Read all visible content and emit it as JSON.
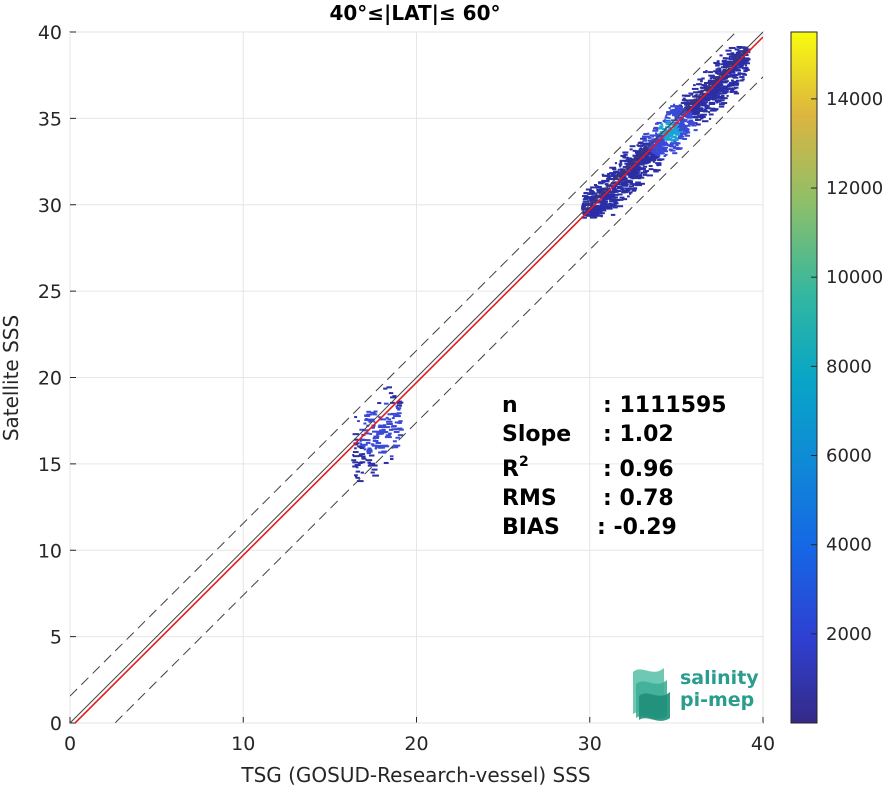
{
  "chart_data": {
    "type": "heatmap",
    "title": "40°≤|LAT|≤ 60°",
    "xlabel": "TSG (GOSUD-Research-vessel) SSS",
    "ylabel": "Satellite SSS",
    "xlim": [
      0,
      40
    ],
    "ylim": [
      0,
      40
    ],
    "xticks": [
      "0",
      "10",
      "20",
      "30",
      "40"
    ],
    "yticks": [
      "0",
      "5",
      "10",
      "15",
      "20",
      "25",
      "30",
      "35",
      "40"
    ],
    "grid": true,
    "lines": [
      {
        "kind": "identity",
        "color": "#404040",
        "intercept": 0,
        "slope": 1
      },
      {
        "kind": "upper-bound",
        "color": "#404040",
        "dash": true,
        "intercept": 1.56,
        "slope": 1
      },
      {
        "kind": "lower-bound",
        "color": "#404040",
        "dash": true,
        "intercept": -2.6,
        "slope": 1
      },
      {
        "kind": "fit",
        "color": "#e8191c",
        "intercept": -0.29,
        "slope": 1.0
      }
    ],
    "density_clusters": [
      {
        "x_range": [
          29.5,
          39
        ],
        "y_range": [
          29.3,
          39.2
        ],
        "center": [
          34.5,
          34.3
        ]
      },
      {
        "x_range": [
          16.2,
          19
        ],
        "y_range": [
          14,
          21.5
        ],
        "center": [
          18,
          17
        ]
      }
    ],
    "colorbar": {
      "range": [
        0,
        15500
      ],
      "ticks": [
        "2000",
        "4000",
        "6000",
        "8000",
        "10000",
        "12000",
        "14000"
      ],
      "colormap": "parula"
    },
    "stats": {
      "n": {
        "label": "n",
        "value": ": 1111595"
      },
      "slope": {
        "label": "Slope",
        "value": ": 1.02"
      },
      "r2": {
        "label": "R",
        "sup": "2",
        "value": ": 0.96"
      },
      "rms": {
        "label": "RMS",
        "value": ": 0.78"
      },
      "bias": {
        "label": "BIAS",
        "value": ": -0.29"
      }
    }
  },
  "logo": {
    "line1": "salinity",
    "line2": "pi-mep"
  }
}
